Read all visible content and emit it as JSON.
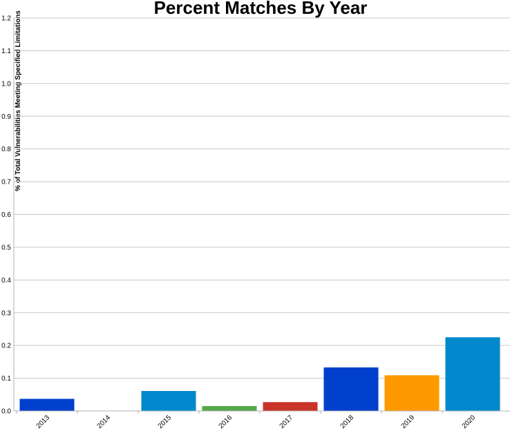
{
  "chart_data": {
    "type": "bar",
    "title": "Percent Matches By Year",
    "xlabel": "",
    "ylabel": "% of Total Vulnerabilities Meeting Specified Limitations",
    "ylim": [
      0,
      1.2
    ],
    "yticks": [
      "0.0",
      "0.1",
      "0.2",
      "0.3",
      "0.4",
      "0.5",
      "0.6",
      "0.7",
      "0.8",
      "0.9",
      "1.0",
      "1.1",
      "1.2"
    ],
    "categories": [
      "2013",
      "2014",
      "2015",
      "2016",
      "2017",
      "2018",
      "2019",
      "2020"
    ],
    "values": [
      0.037,
      0.0,
      0.061,
      0.015,
      0.027,
      0.133,
      0.109,
      0.225
    ],
    "colors": [
      "#0040cc",
      "#ff8c00",
      "#0088cc",
      "#55a84a",
      "#c8342a",
      "#0040cc",
      "#ff9900",
      "#0088cc"
    ],
    "grid": true,
    "legend": "none"
  }
}
